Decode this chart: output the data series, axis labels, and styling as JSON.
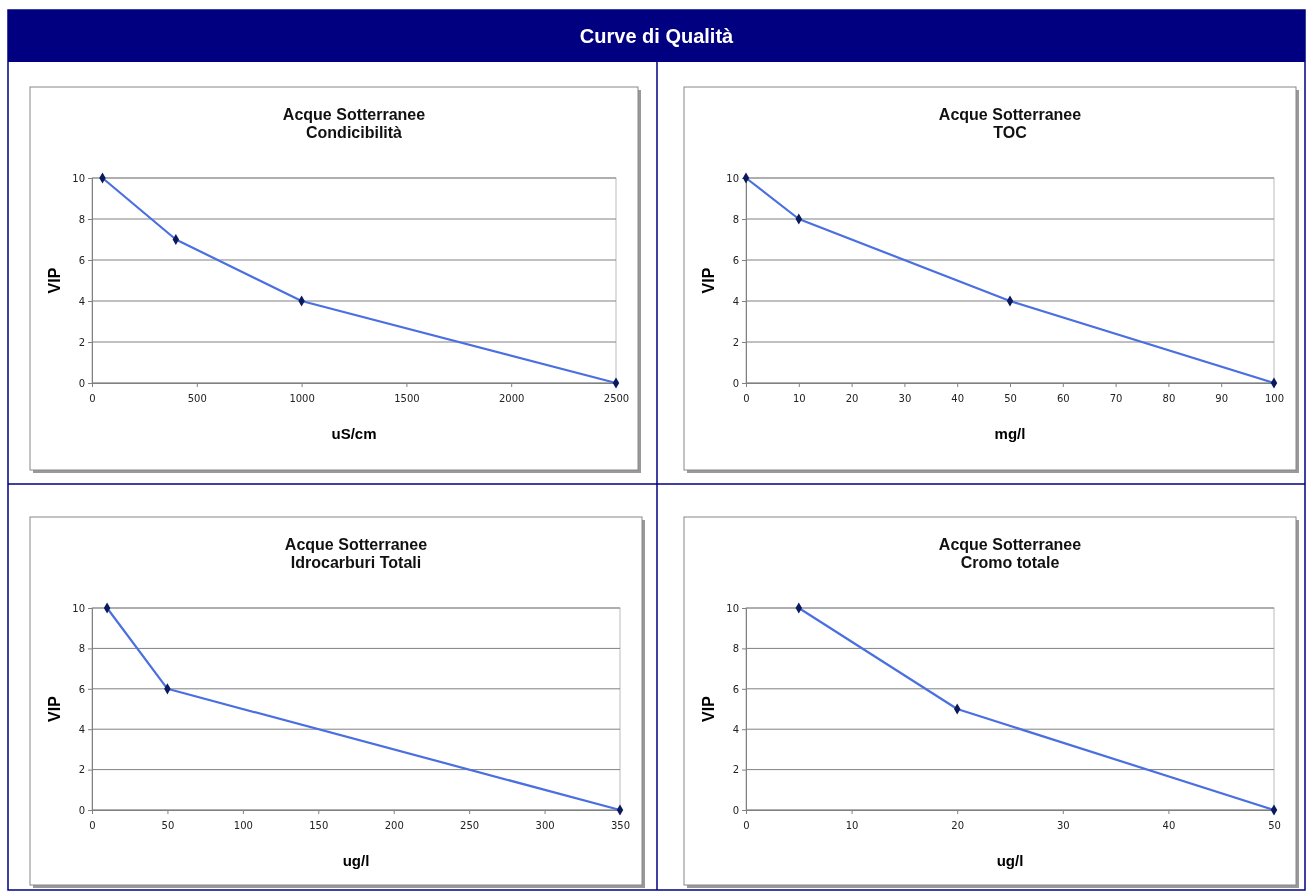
{
  "chart_data": [
    {
      "type": "line",
      "title": "Acque Sotterranee\nCondicibilità",
      "annotations": [
        "Curve di Qualità"
      ],
      "xlabel": "uS/cm",
      "ylabel": "VIP",
      "xlim": [
        0,
        2500
      ],
      "xticks": [
        0,
        500,
        1000,
        1500,
        2000,
        2500
      ],
      "ylim": [
        0,
        10
      ],
      "yticks": [
        0,
        2,
        4,
        6,
        8,
        10
      ],
      "grid": "y",
      "marker": "diamond",
      "series": [
        {
          "color": "#4a6fe0",
          "x": [
            50,
            400,
            1000,
            2500
          ],
          "values": [
            10,
            7,
            4,
            0
          ]
        }
      ]
    },
    {
      "type": "line",
      "title": "Acque Sotterranee\nTOC",
      "xlabel": "mg/l",
      "ylabel": "VIP",
      "xlim": [
        0,
        100
      ],
      "xticks": [
        0,
        10,
        20,
        30,
        40,
        50,
        60,
        70,
        80,
        90,
        100
      ],
      "ylim": [
        0,
        10
      ],
      "yticks": [
        0,
        2,
        4,
        6,
        8,
        10
      ],
      "grid": "y",
      "marker": "diamond",
      "series": [
        {
          "color": "#4a6fe0",
          "x": [
            0,
            10,
            50,
            100
          ],
          "values": [
            10,
            8,
            4,
            0
          ]
        }
      ]
    },
    {
      "type": "line",
      "title": "Acque Sotterranee\nIdrocarburi Totali",
      "xlabel": "ug/l",
      "ylabel": "VIP",
      "xlim": [
        0,
        350
      ],
      "xticks": [
        0,
        50,
        100,
        150,
        200,
        250,
        300,
        350
      ],
      "ylim": [
        0,
        10
      ],
      "yticks": [
        0,
        2,
        4,
        6,
        8,
        10
      ],
      "grid": "y",
      "marker": "diamond",
      "series": [
        {
          "color": "#4a6fe0",
          "x": [
            10,
            50,
            350
          ],
          "values": [
            10,
            6,
            0
          ]
        }
      ]
    },
    {
      "type": "line",
      "title": "Acque Sotterranee\nCromo totale",
      "xlabel": "ug/l",
      "ylabel": "VIP",
      "xlim": [
        0,
        50
      ],
      "xticks": [
        0,
        10,
        20,
        30,
        40,
        50
      ],
      "ylim": [
        0,
        10
      ],
      "yticks": [
        0,
        2,
        4,
        6,
        8,
        10
      ],
      "grid": "y",
      "marker": "diamond",
      "series": [
        {
          "color": "#4a6fe0",
          "x": [
            5,
            20,
            50
          ],
          "values": [
            10,
            5,
            0
          ]
        }
      ]
    }
  ]
}
